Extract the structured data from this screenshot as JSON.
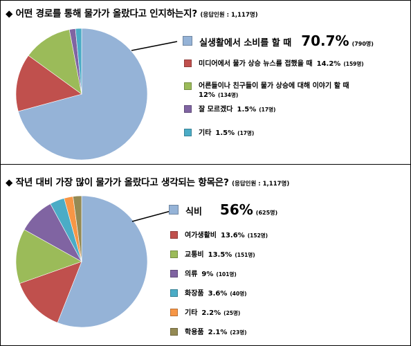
{
  "chart_data": [
    {
      "type": "pie",
      "title": "◆ 어떤 경로를 통해 물가가 올랐다고 인지하는지?",
      "note": "(응답인원 : 1,117명)",
      "series": [
        {
          "label": "실생활에서 소비를 할 때",
          "value": 70.7,
          "pct": "70.7%",
          "count": "(790명)",
          "color": "#95b3d7"
        },
        {
          "label": "미디어에서 물가 상승 뉴스를 접했을 때",
          "value": 14.2,
          "pct": "14.2%",
          "count": "(159명)",
          "color": "#c0504d"
        },
        {
          "label": "어른들이나 친구들이 물가 상승에 대해 이야기 할 때",
          "value": 12,
          "pct": "12%",
          "count": "(134명)",
          "color": "#9bbb59"
        },
        {
          "label": "잘 모르겠다",
          "value": 1.5,
          "pct": "1.5%",
          "count": "(17명)",
          "color": "#8064a2"
        },
        {
          "label": "기타",
          "value": 1.5,
          "pct": "1.5%",
          "count": "(17명)",
          "color": "#4bacc6"
        }
      ]
    },
    {
      "type": "pie",
      "title": "◆ 작년 대비 가장 많이 물가가 올랐다고 생각되는 항목은?",
      "note": "(응답인원 : 1,117명)",
      "series": [
        {
          "label": "식비",
          "value": 56,
          "pct": "56%",
          "count": "(625명)",
          "color": "#95b3d7"
        },
        {
          "label": "여가생활비",
          "value": 13.6,
          "pct": "13.6%",
          "count": "(152명)",
          "color": "#c0504d"
        },
        {
          "label": "교통비",
          "value": 13.5,
          "pct": "13.5%",
          "count": "(151명)",
          "color": "#9bbb59"
        },
        {
          "label": "의류",
          "value": 9,
          "pct": "9%",
          "count": "(101명)",
          "color": "#8064a2"
        },
        {
          "label": "화장품",
          "value": 3.6,
          "pct": "3.6%",
          "count": "(40명)",
          "color": "#4bacc6"
        },
        {
          "label": "기타",
          "value": 2.2,
          "pct": "2.2%",
          "count": "(25명)",
          "color": "#f79646"
        },
        {
          "label": "학용품",
          "value": 2.1,
          "pct": "2.1%",
          "count": "(23명)",
          "color": "#948a54"
        }
      ]
    }
  ]
}
